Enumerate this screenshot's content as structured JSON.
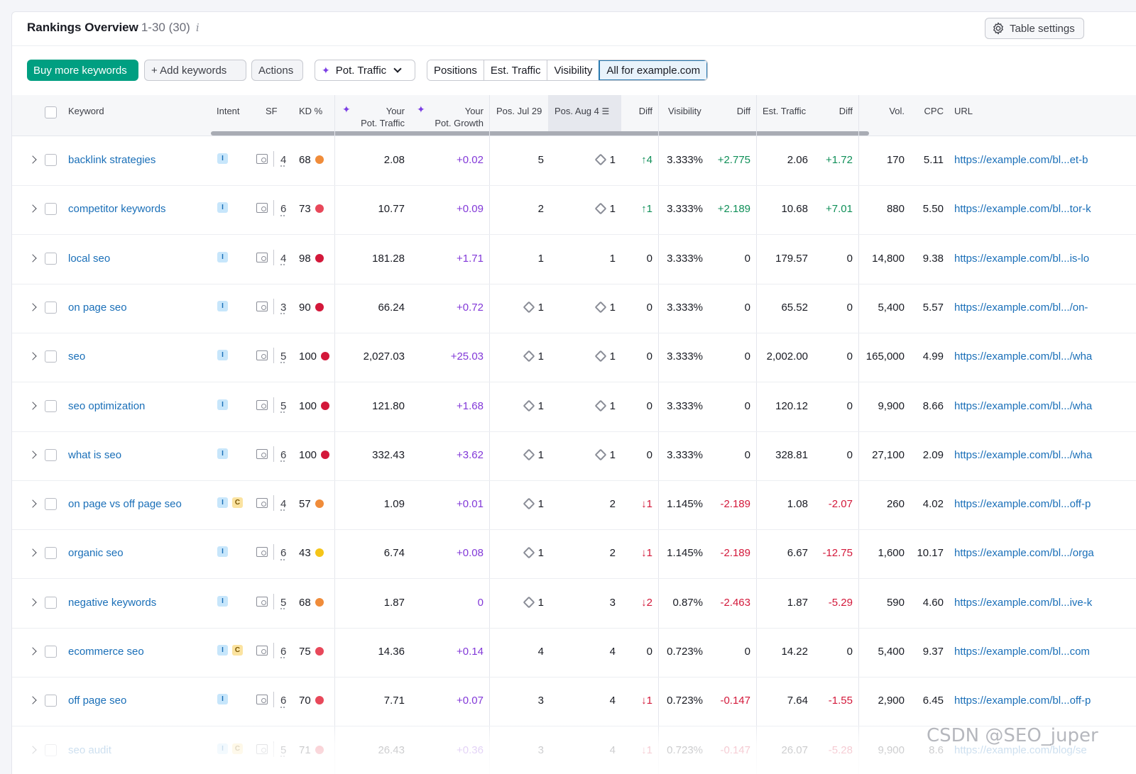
{
  "header": {
    "title": "Rankings Overview",
    "range": "1-30 (30)",
    "info_icon": "i",
    "table_settings": "Table settings"
  },
  "toolbar": {
    "buy_more": "Buy more keywords",
    "add_keywords": "+ Add keywords",
    "actions": "Actions",
    "metric_dropdown": "Pot. Traffic",
    "segments": [
      "Positions",
      "Est. Traffic",
      "Visibility",
      "All for example.com"
    ],
    "active_segment": "All for example.com"
  },
  "columns": {
    "keyword": "Keyword",
    "intent": "Intent",
    "sf": "SF",
    "kd": "KD %",
    "pot_traffic_1": "Your",
    "pot_traffic_2": "Pot. Traffic",
    "pot_growth_1": "Your",
    "pot_growth_2": "Pot. Growth",
    "pos_jul": "Pos. Jul 29",
    "pos_aug": "Pos. Aug 4",
    "diff": "Diff",
    "visibility": "Visibility",
    "vis_diff": "Diff",
    "est_traffic": "Est. Traffic",
    "traffic_diff": "Diff",
    "vol": "Vol.",
    "cpc": "CPC",
    "url": "URL"
  },
  "colors": {
    "accent": "#009f81",
    "link": "#1a6fb8",
    "positive": "#0f8f58",
    "negative": "#d3183a",
    "growth": "#8238d8",
    "kd_orange": "#f08c3a",
    "kd_red": "#d3183a",
    "kd_lightred": "#e8485a",
    "kd_yellow": "#f5c518"
  },
  "rows": [
    {
      "keyword": "backlink strategies",
      "intents": [
        "I"
      ],
      "sf": "4",
      "kd": "68",
      "kd_color": "#f08c3a",
      "pot_traffic": "2.08",
      "pot_growth": "+0.02",
      "pos_jul": "5",
      "pos_jul_icon": false,
      "pos_aug": "1",
      "pos_aug_icon": true,
      "diff": "↑4",
      "diff_sign": "pos",
      "visibility": "3.333%",
      "vis_diff": "+2.775",
      "vis_diff_sign": "pos",
      "est_traffic": "2.06",
      "traffic_diff": "+1.72",
      "traffic_diff_sign": "pos",
      "vol": "170",
      "cpc": "5.11",
      "url": "https://example.com/bl...et-b"
    },
    {
      "keyword": "competitor keywords",
      "intents": [
        "I"
      ],
      "sf": "6",
      "kd": "73",
      "kd_color": "#e8485a",
      "pot_traffic": "10.77",
      "pot_growth": "+0.09",
      "pos_jul": "2",
      "pos_jul_icon": false,
      "pos_aug": "1",
      "pos_aug_icon": true,
      "diff": "↑1",
      "diff_sign": "pos",
      "visibility": "3.333%",
      "vis_diff": "+2.189",
      "vis_diff_sign": "pos",
      "est_traffic": "10.68",
      "traffic_diff": "+7.01",
      "traffic_diff_sign": "pos",
      "vol": "880",
      "cpc": "5.50",
      "url": "https://example.com/bl...tor-k"
    },
    {
      "keyword": "local seo",
      "intents": [
        "I"
      ],
      "sf": "4",
      "kd": "98",
      "kd_color": "#d3183a",
      "pot_traffic": "181.28",
      "pot_growth": "+1.71",
      "pos_jul": "1",
      "pos_jul_icon": false,
      "pos_aug": "1",
      "pos_aug_icon": false,
      "diff": "0",
      "diff_sign": "zero",
      "visibility": "3.333%",
      "vis_diff": "0",
      "vis_diff_sign": "zero",
      "est_traffic": "179.57",
      "traffic_diff": "0",
      "traffic_diff_sign": "zero",
      "vol": "14,800",
      "cpc": "9.38",
      "url": "https://example.com/bl...is-lo"
    },
    {
      "keyword": "on page seo",
      "intents": [
        "I"
      ],
      "sf": "3",
      "kd": "90",
      "kd_color": "#d3183a",
      "pot_traffic": "66.24",
      "pot_growth": "+0.72",
      "pos_jul": "1",
      "pos_jul_icon": true,
      "pos_aug": "1",
      "pos_aug_icon": true,
      "diff": "0",
      "diff_sign": "zero",
      "visibility": "3.333%",
      "vis_diff": "0",
      "vis_diff_sign": "zero",
      "est_traffic": "65.52",
      "traffic_diff": "0",
      "traffic_diff_sign": "zero",
      "vol": "5,400",
      "cpc": "5.57",
      "url": "https://example.com/bl.../on-"
    },
    {
      "keyword": "seo",
      "intents": [
        "I"
      ],
      "sf": "5",
      "kd": "100",
      "kd_color": "#d3183a",
      "pot_traffic": "2,027.03",
      "pot_growth": "+25.03",
      "pos_jul": "1",
      "pos_jul_icon": true,
      "pos_aug": "1",
      "pos_aug_icon": true,
      "diff": "0",
      "diff_sign": "zero",
      "visibility": "3.333%",
      "vis_diff": "0",
      "vis_diff_sign": "zero",
      "est_traffic": "2,002.00",
      "traffic_diff": "0",
      "traffic_diff_sign": "zero",
      "vol": "165,000",
      "cpc": "4.99",
      "url": "https://example.com/bl.../wha"
    },
    {
      "keyword": "seo optimization",
      "intents": [
        "I"
      ],
      "sf": "5",
      "kd": "100",
      "kd_color": "#d3183a",
      "pot_traffic": "121.80",
      "pot_growth": "+1.68",
      "pos_jul": "1",
      "pos_jul_icon": true,
      "pos_aug": "1",
      "pos_aug_icon": true,
      "diff": "0",
      "diff_sign": "zero",
      "visibility": "3.333%",
      "vis_diff": "0",
      "vis_diff_sign": "zero",
      "est_traffic": "120.12",
      "traffic_diff": "0",
      "traffic_diff_sign": "zero",
      "vol": "9,900",
      "cpc": "8.66",
      "url": "https://example.com/bl.../wha"
    },
    {
      "keyword": "what is seo",
      "intents": [
        "I"
      ],
      "sf": "6",
      "kd": "100",
      "kd_color": "#d3183a",
      "pot_traffic": "332.43",
      "pot_growth": "+3.62",
      "pos_jul": "1",
      "pos_jul_icon": true,
      "pos_aug": "1",
      "pos_aug_icon": true,
      "diff": "0",
      "diff_sign": "zero",
      "visibility": "3.333%",
      "vis_diff": "0",
      "vis_diff_sign": "zero",
      "est_traffic": "328.81",
      "traffic_diff": "0",
      "traffic_diff_sign": "zero",
      "vol": "27,100",
      "cpc": "2.09",
      "url": "https://example.com/bl.../wha"
    },
    {
      "keyword": "on page vs off page seo",
      "intents": [
        "I",
        "C"
      ],
      "sf": "4",
      "kd": "57",
      "kd_color": "#f08c3a",
      "pot_traffic": "1.09",
      "pot_growth": "+0.01",
      "pos_jul": "1",
      "pos_jul_icon": true,
      "pos_aug": "2",
      "pos_aug_icon": false,
      "diff": "↓1",
      "diff_sign": "neg",
      "visibility": "1.145%",
      "vis_diff": "-2.189",
      "vis_diff_sign": "neg",
      "est_traffic": "1.08",
      "traffic_diff": "-2.07",
      "traffic_diff_sign": "neg",
      "vol": "260",
      "cpc": "4.02",
      "url": "https://example.com/bl...off-p"
    },
    {
      "keyword": "organic seo",
      "intents": [
        "I"
      ],
      "sf": "6",
      "kd": "43",
      "kd_color": "#f5c518",
      "pot_traffic": "6.74",
      "pot_growth": "+0.08",
      "pos_jul": "1",
      "pos_jul_icon": true,
      "pos_aug": "2",
      "pos_aug_icon": false,
      "diff": "↓1",
      "diff_sign": "neg",
      "visibility": "1.145%",
      "vis_diff": "-2.189",
      "vis_diff_sign": "neg",
      "est_traffic": "6.67",
      "traffic_diff": "-12.75",
      "traffic_diff_sign": "neg",
      "vol": "1,600",
      "cpc": "10.17",
      "url": "https://example.com/bl.../orga"
    },
    {
      "keyword": "negative keywords",
      "intents": [
        "I"
      ],
      "sf": "5",
      "kd": "68",
      "kd_color": "#f08c3a",
      "pot_traffic": "1.87",
      "pot_growth": "0",
      "pos_jul": "1",
      "pos_jul_icon": true,
      "pos_aug": "3",
      "pos_aug_icon": false,
      "diff": "↓2",
      "diff_sign": "neg",
      "visibility": "0.87%",
      "vis_diff": "-2.463",
      "vis_diff_sign": "neg",
      "est_traffic": "1.87",
      "traffic_diff": "-5.29",
      "traffic_diff_sign": "neg",
      "vol": "590",
      "cpc": "4.60",
      "url": "https://example.com/bl...ive-k"
    },
    {
      "keyword": "ecommerce seo",
      "intents": [
        "I",
        "C"
      ],
      "sf": "6",
      "kd": "75",
      "kd_color": "#e8485a",
      "pot_traffic": "14.36",
      "pot_growth": "+0.14",
      "pos_jul": "4",
      "pos_jul_icon": false,
      "pos_aug": "4",
      "pos_aug_icon": false,
      "diff": "0",
      "diff_sign": "zero",
      "visibility": "0.723%",
      "vis_diff": "0",
      "vis_diff_sign": "zero",
      "est_traffic": "14.22",
      "traffic_diff": "0",
      "traffic_diff_sign": "zero",
      "vol": "5,400",
      "cpc": "9.37",
      "url": "https://example.com/bl...com"
    },
    {
      "keyword": "off page seo",
      "intents": [
        "I"
      ],
      "sf": "6",
      "kd": "70",
      "kd_color": "#e8485a",
      "pot_traffic": "7.71",
      "pot_growth": "+0.07",
      "pos_jul": "3",
      "pos_jul_icon": false,
      "pos_aug": "4",
      "pos_aug_icon": false,
      "diff": "↓1",
      "diff_sign": "neg",
      "visibility": "0.723%",
      "vis_diff": "-0.147",
      "vis_diff_sign": "neg",
      "est_traffic": "7.64",
      "traffic_diff": "-1.55",
      "traffic_diff_sign": "neg",
      "vol": "2,900",
      "cpc": "6.45",
      "url": "https://example.com/bl...off-p"
    },
    {
      "keyword": "seo audit",
      "intents": [
        "I",
        "C"
      ],
      "sf": "5",
      "kd": "71",
      "kd_color": "#e8485a",
      "pot_traffic": "26.43",
      "pot_growth": "+0.36",
      "pos_jul": "3",
      "pos_jul_icon": false,
      "pos_aug": "4",
      "pos_aug_icon": false,
      "diff": "↓1",
      "diff_sign": "neg",
      "visibility": "0.723%",
      "vis_diff": "-0.147",
      "vis_diff_sign": "neg",
      "est_traffic": "26.07",
      "traffic_diff": "-5.28",
      "traffic_diff_sign": "neg",
      "vol": "9,900",
      "cpc": "8.6",
      "url": "https://example.com/blog/se"
    }
  ],
  "watermark": "CSDN @SEO_juper"
}
